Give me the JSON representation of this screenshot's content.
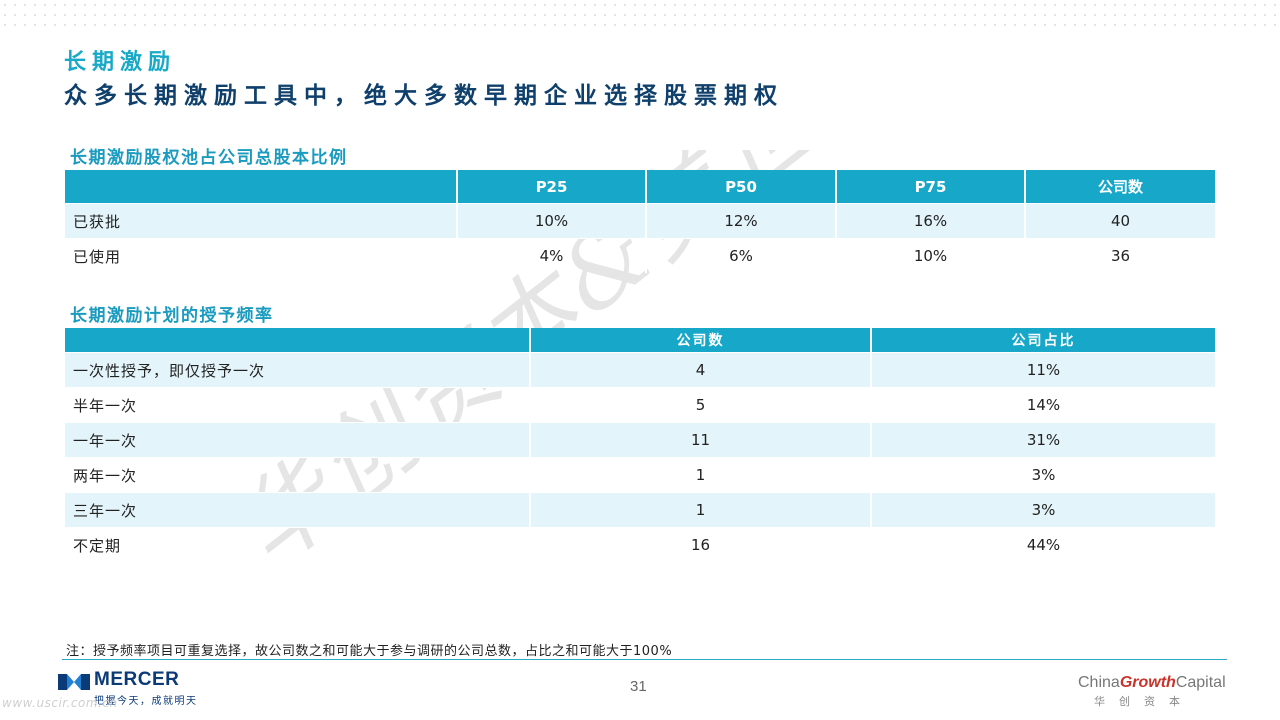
{
  "header": {
    "section_label": "长期激励",
    "headline": "众多长期激励工具中，绝大多数早期企业选择股票期权"
  },
  "pool_table": {
    "title": "长期激励股权池占公司总股本比例",
    "columns": [
      "",
      "P25",
      "P50",
      "P75",
      "公司数"
    ],
    "rows": [
      {
        "label": "已获批",
        "values": [
          "10%",
          "12%",
          "16%",
          "40"
        ]
      },
      {
        "label": "已使用",
        "values": [
          "4%",
          "6%",
          "10%",
          "36"
        ]
      }
    ]
  },
  "frequency_table": {
    "title": "长期激励计划的授予频率",
    "columns": [
      "",
      "公司数",
      "公司占比"
    ],
    "rows": [
      {
        "label": "一次性授予，即仅授予一次",
        "values": [
          "4",
          "11%"
        ]
      },
      {
        "label": "半年一次",
        "values": [
          "5",
          "14%"
        ]
      },
      {
        "label": "一年一次",
        "values": [
          "11",
          "31%"
        ]
      },
      {
        "label": "两年一次",
        "values": [
          "1",
          "3%"
        ]
      },
      {
        "label": "三年一次",
        "values": [
          "1",
          "3%"
        ]
      },
      {
        "label": "不定期",
        "values": [
          "16",
          "44%"
        ]
      }
    ]
  },
  "watermark": {
    "text": "华创资本&美世"
  },
  "footer": {
    "note": "注：授予频率项目可重复选择，故公司数之和可能大于参与调研的公司总数，占比之和可能大于100%",
    "page_number": "31",
    "mercer_name": "MERCER",
    "mercer_tagline": "把握今天，成就明天",
    "url": "www.uscir.com.cn",
    "cgc_china": "China",
    "cgc_growth": "Growth",
    "cgc_capital": "Capital",
    "cgc_chinese": "华创资本"
  },
  "colors": {
    "accent": "#16a7c9",
    "headline": "#0f3f6b",
    "row_alt": "#e3f4fa",
    "mercer_blue": "#0b3a78"
  }
}
